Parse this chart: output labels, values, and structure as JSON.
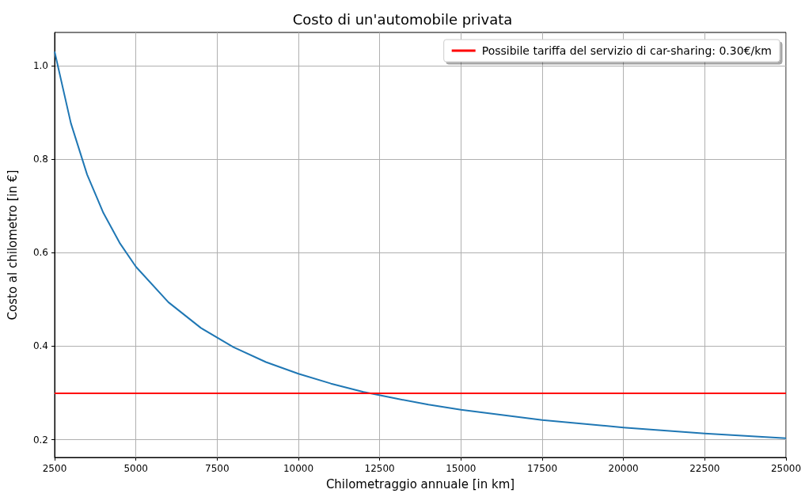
{
  "chart_data": {
    "type": "line",
    "title": "Costo di un'automobile privata",
    "xlabel": "Chilometraggio annuale [in km]",
    "ylabel": "Costo al chilometro [in €]",
    "x": [
      2500,
      3000,
      3500,
      4000,
      4500,
      5000,
      6000,
      7000,
      8000,
      9000,
      10000,
      11000,
      12000,
      13000,
      14000,
      15000,
      17500,
      20000,
      22500,
      25000
    ],
    "series": [
      {
        "color": "#1f77b4",
        "values": [
          1.03,
          0.877,
          0.767,
          0.685,
          0.621,
          0.57,
          0.494,
          0.439,
          0.398,
          0.366,
          0.341,
          0.32,
          0.302,
          0.288,
          0.275,
          0.264,
          0.242,
          0.226,
          0.213,
          0.203
        ]
      }
    ],
    "ref_lines": [
      {
        "axis": "y",
        "value": 0.3,
        "label": "Possibile tariffa del servizio di car-sharing: 0.30€/km",
        "color": "#ff0000"
      }
    ],
    "xlim": [
      2500,
      25000
    ],
    "xticks": [
      2500,
      5000,
      7500,
      10000,
      12500,
      15000,
      17500,
      20000,
      22500,
      25000
    ],
    "ylim": [
      0.162,
      1.071
    ],
    "yticks": [
      0.2,
      0.4,
      0.6,
      0.8,
      {
        "value": 1,
        "label": "1.0"
      }
    ],
    "grid": true,
    "legend": "top right",
    "marker": "none",
    "line_style": "solid"
  }
}
